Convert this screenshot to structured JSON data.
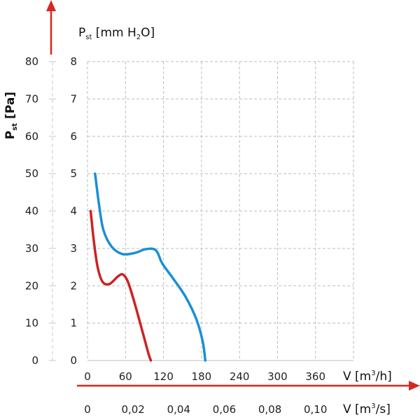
{
  "chart_data": {
    "type": "line",
    "y_outer_label": {
      "main": "P",
      "sub": "st",
      "rest": " [Pa]"
    },
    "y_inner_label": {
      "main": "P",
      "sub": "st",
      "rest1": " [mm H",
      "sub2": "2",
      "rest2": "O]"
    },
    "x_top_label": {
      "main": "V [m",
      "sup": "3",
      "rest": "/h]"
    },
    "x_bottom_label": {
      "main": "V [m",
      "sup": "3",
      "rest": "/s]"
    },
    "y_pa_ticks": [
      "0",
      "10",
      "20",
      "30",
      "40",
      "50",
      "60",
      "70",
      "80"
    ],
    "y_mm_ticks": [
      "0",
      "1",
      "2",
      "3",
      "4",
      "5",
      "6",
      "7",
      "8"
    ],
    "x_m3h_ticks": [
      "0",
      "60",
      "120",
      "180",
      "240",
      "300",
      "360"
    ],
    "x_m3s_ticks": [
      "0",
      "0,02",
      "0,04",
      "0,06",
      "0,08",
      "0,10"
    ],
    "xlim_m3h": [
      0,
      420
    ],
    "ylim_mm": [
      0,
      8
    ],
    "grid": true,
    "series": [
      {
        "color": "#1a8fd6",
        "points": [
          [
            12,
            5.0
          ],
          [
            18,
            4.2
          ],
          [
            25,
            3.5
          ],
          [
            38,
            3.05
          ],
          [
            55,
            2.85
          ],
          [
            75,
            2.88
          ],
          [
            92,
            2.98
          ],
          [
            108,
            2.95
          ],
          [
            118,
            2.6
          ],
          [
            135,
            2.2
          ],
          [
            155,
            1.7
          ],
          [
            172,
            1.1
          ],
          [
            182,
            0.5
          ],
          [
            186,
            0.0
          ]
        ]
      },
      {
        "color": "#cc2222",
        "points": [
          [
            5,
            4.0
          ],
          [
            10,
            3.2
          ],
          [
            16,
            2.5
          ],
          [
            24,
            2.1
          ],
          [
            35,
            2.05
          ],
          [
            48,
            2.25
          ],
          [
            56,
            2.3
          ],
          [
            64,
            2.1
          ],
          [
            75,
            1.5
          ],
          [
            88,
            0.7
          ],
          [
            96,
            0.2
          ],
          [
            100,
            0.0
          ]
        ]
      }
    ]
  }
}
